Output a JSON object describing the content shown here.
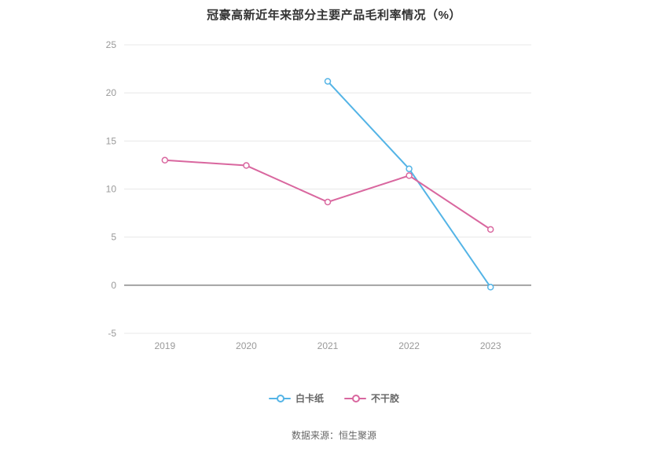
{
  "chart_data": {
    "type": "line",
    "title": "冠豪高新近年来部分主要产品毛利率情况（%）",
    "categories": [
      "2019",
      "2020",
      "2021",
      "2022",
      "2023"
    ],
    "series": [
      {
        "name": "白卡纸",
        "color": "#54b4e6",
        "values": [
          null,
          null,
          21.2,
          12.1,
          -0.2
        ]
      },
      {
        "name": "不干胶",
        "color": "#d9679f",
        "values": [
          13.0,
          12.45,
          8.65,
          11.4,
          5.8
        ]
      }
    ],
    "ylim": [
      -5,
      25
    ],
    "yticks": [
      -5,
      0,
      5,
      10,
      15,
      20,
      25
    ],
    "grid": "horizontal",
    "legend_position": "bottom",
    "axis_label_color": "#999999",
    "gridline_color": "#e8e8e8",
    "zero_line_color": "#4d4d4d"
  },
  "footer": {
    "source": "数据来源：恒生聚源"
  }
}
